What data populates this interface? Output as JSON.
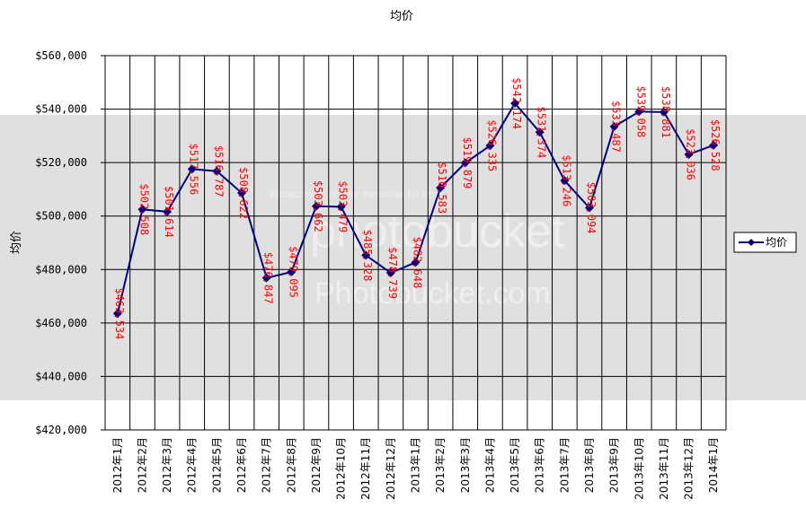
{
  "watermark": {
    "line1": "Protect more of your memories for less!",
    "brand": "photobucket",
    "line2": "Sign up for Photobucket.com",
    "line3": "Photobucket.com"
  },
  "chart_data": {
    "type": "line",
    "title": "均价",
    "ylabel": "均价",
    "xlabel": "",
    "ylim": [
      420000,
      560000
    ],
    "y_ticks": [
      420000,
      440000,
      460000,
      480000,
      500000,
      520000,
      540000,
      560000
    ],
    "y_tick_labels": [
      "$420,000",
      "$440,000",
      "$460,000",
      "$480,000",
      "$500,000",
      "$520,000",
      "$540,000",
      "$560,000"
    ],
    "grid": true,
    "legend_position": "right",
    "categories": [
      "2012年1月",
      "2012年2月",
      "2012年3月",
      "2012年4月",
      "2012年5月",
      "2012年6月",
      "2012年7月",
      "2012年8月",
      "2012年9月",
      "2012年10月",
      "2012年11月",
      "2012年12月",
      "2013年1月",
      "2013年2月",
      "2013年3月",
      "2013年4月",
      "2013年5月",
      "2013年6月",
      "2013年7月",
      "2013年8月",
      "2013年9月",
      "2013年10月",
      "2013年11月",
      "2013年12月",
      "2014年1月"
    ],
    "series": [
      {
        "name": "均价",
        "color": "#000080",
        "values": [
          463534,
          502508,
          501614,
          517556,
          516787,
          508622,
          476847,
          479095,
          503662,
          503479,
          485328,
          478739,
          482648,
          510583,
          519879,
          526335,
          542174,
          531374,
          513246,
          503094,
          533487,
          539058,
          538881,
          523036,
          526528
        ],
        "labels": [
          "$463,534",
          "$502,508",
          "$501,614",
          "$517,556",
          "$516,787",
          "$508,622",
          "$476,847",
          "$479,095",
          "$503,662",
          "$503,479",
          "$485,328",
          "$478,739",
          "$482,648",
          "$510,583",
          "$519,879",
          "$526,335",
          "$542,174",
          "$531,374",
          "$513,246",
          "$503,094",
          "$533,487",
          "$539,058",
          "$538,881",
          "$523,036",
          "$526,528"
        ]
      }
    ]
  }
}
